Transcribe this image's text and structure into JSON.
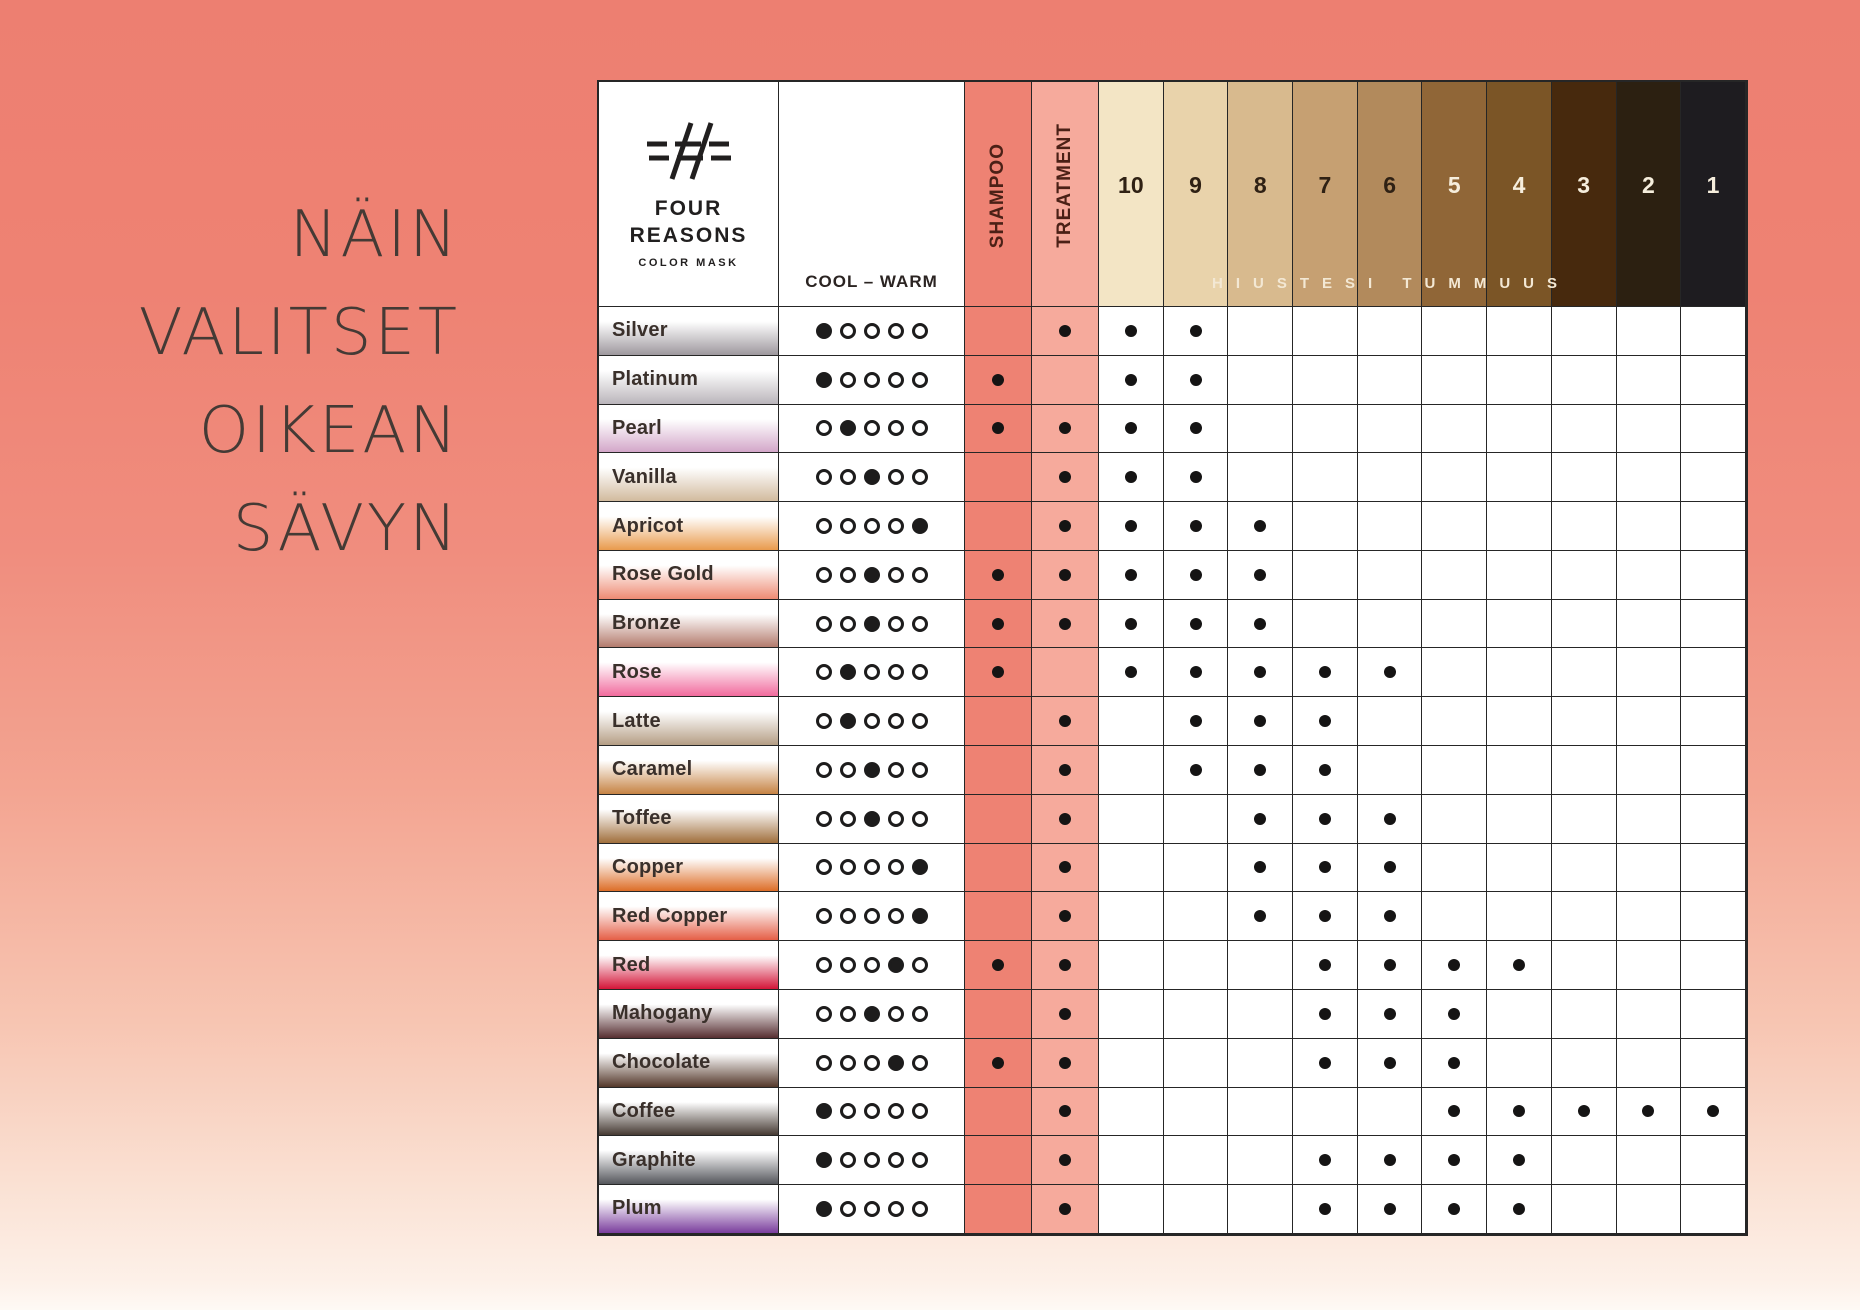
{
  "heading": {
    "lines": [
      "NÄIN",
      "VALITSET",
      "OIKEAN",
      "SÄVYN"
    ]
  },
  "brand": {
    "logo": "four-reasons-hash-mark",
    "line1": "FOUR",
    "line2": "REASONS",
    "subtitle": "COLOR MASK"
  },
  "chart_data": {
    "type": "table",
    "title": "Four Reasons Color Mask — shade selection chart",
    "cool_warm_label": "COOL – WARM",
    "shampoo_label": "SHAMPOO",
    "treatment_label": "TREATMENT",
    "darkness_band_label": "HIUSTESI TUMMUUS",
    "cool_warm_scale_positions": 5,
    "colors": {
      "shampoo_column": "#ee8273",
      "treatment_column": "#f6aa9c",
      "grid": "#262626",
      "dot": "#151414",
      "level_text_light": "#f6eedd",
      "level_text_dark": "#2f2114"
    },
    "level_columns": [
      {
        "label": "10",
        "value": 10,
        "bg": "#f3e5c5",
        "text": "dark"
      },
      {
        "label": "9",
        "value": 9,
        "bg": "#e9d3ab",
        "text": "dark"
      },
      {
        "label": "8",
        "value": 8,
        "bg": "#d8ba8e",
        "text": "dark"
      },
      {
        "label": "7",
        "value": 7,
        "bg": "#c6a072",
        "text": "dark"
      },
      {
        "label": "6",
        "value": 6,
        "bg": "#b28a5c",
        "text": "dark"
      },
      {
        "label": "5",
        "value": 5,
        "bg": "#906637",
        "text": "light"
      },
      {
        "label": "4",
        "value": 4,
        "bg": "#7b5526",
        "text": "light"
      },
      {
        "label": "3",
        "value": 3,
        "bg": "#47290d",
        "text": "light"
      },
      {
        "label": "2",
        "value": 2,
        "bg": "#2c2011",
        "text": "light"
      },
      {
        "label": "1",
        "value": 1,
        "bg": "#1e1c20",
        "text": "light"
      }
    ],
    "rows": [
      {
        "label": "Silver",
        "swatch": "#9e989e",
        "cool_warm": 1,
        "shampoo": false,
        "treatment": true,
        "levels": [
          10,
          9
        ]
      },
      {
        "label": "Platinum",
        "swatch": "#bab5bb",
        "cool_warm": 1,
        "shampoo": true,
        "treatment": false,
        "levels": [
          10,
          9
        ]
      },
      {
        "label": "Pearl",
        "swatch": "#d3a7c9",
        "cool_warm": 2,
        "shampoo": true,
        "treatment": true,
        "levels": [
          10,
          9
        ]
      },
      {
        "label": "Vanilla",
        "swatch": "#d2bb9e",
        "cool_warm": 3,
        "shampoo": false,
        "treatment": true,
        "levels": [
          10,
          9
        ]
      },
      {
        "label": "Apricot",
        "swatch": "#e99a4d",
        "cool_warm": 5,
        "shampoo": false,
        "treatment": true,
        "levels": [
          10,
          9,
          8
        ]
      },
      {
        "label": "Rose Gold",
        "swatch": "#ee8b74",
        "cool_warm": 3,
        "shampoo": true,
        "treatment": true,
        "levels": [
          10,
          9,
          8
        ]
      },
      {
        "label": "Bronze",
        "swatch": "#b37b6d",
        "cool_warm": 3,
        "shampoo": true,
        "treatment": true,
        "levels": [
          10,
          9,
          8
        ]
      },
      {
        "label": "Rose",
        "swatch": "#f16b9d",
        "cool_warm": 2,
        "shampoo": true,
        "treatment": false,
        "levels": [
          10,
          9,
          8,
          7,
          6
        ]
      },
      {
        "label": "Latte",
        "swatch": "#b59e85",
        "cool_warm": 2,
        "shampoo": false,
        "treatment": true,
        "levels": [
          9,
          8,
          7
        ]
      },
      {
        "label": "Caramel",
        "swatch": "#c68344",
        "cool_warm": 3,
        "shampoo": false,
        "treatment": true,
        "levels": [
          9,
          8,
          7
        ]
      },
      {
        "label": "Toffee",
        "swatch": "#a06f3c",
        "cool_warm": 3,
        "shampoo": false,
        "treatment": true,
        "levels": [
          8,
          7,
          6
        ]
      },
      {
        "label": "Copper",
        "swatch": "#dd6e28",
        "cool_warm": 5,
        "shampoo": false,
        "treatment": true,
        "levels": [
          8,
          7,
          6
        ]
      },
      {
        "label": "Red Copper",
        "swatch": "#e55f47",
        "cool_warm": 5,
        "shampoo": false,
        "treatment": true,
        "levels": [
          8,
          7,
          6
        ]
      },
      {
        "label": "Red",
        "swatch": "#d31538",
        "cool_warm": 4,
        "shampoo": true,
        "treatment": true,
        "levels": [
          7,
          6,
          5,
          4
        ]
      },
      {
        "label": "Mahogany",
        "swatch": "#572e31",
        "cool_warm": 3,
        "shampoo": false,
        "treatment": true,
        "levels": [
          7,
          6,
          5
        ]
      },
      {
        "label": "Chocolate",
        "swatch": "#54382a",
        "cool_warm": 4,
        "shampoo": true,
        "treatment": true,
        "levels": [
          7,
          6,
          5
        ]
      },
      {
        "label": "Coffee",
        "swatch": "#463a33",
        "cool_warm": 1,
        "shampoo": false,
        "treatment": true,
        "levels": [
          5,
          4,
          3,
          2,
          1
        ]
      },
      {
        "label": "Graphite",
        "swatch": "#55575c",
        "cool_warm": 1,
        "shampoo": false,
        "treatment": true,
        "levels": [
          7,
          6,
          5,
          4
        ]
      },
      {
        "label": "Plum",
        "swatch": "#7a3e9d",
        "cool_warm": 1,
        "shampoo": false,
        "treatment": true,
        "levels": [
          7,
          6,
          5,
          4
        ]
      }
    ]
  }
}
